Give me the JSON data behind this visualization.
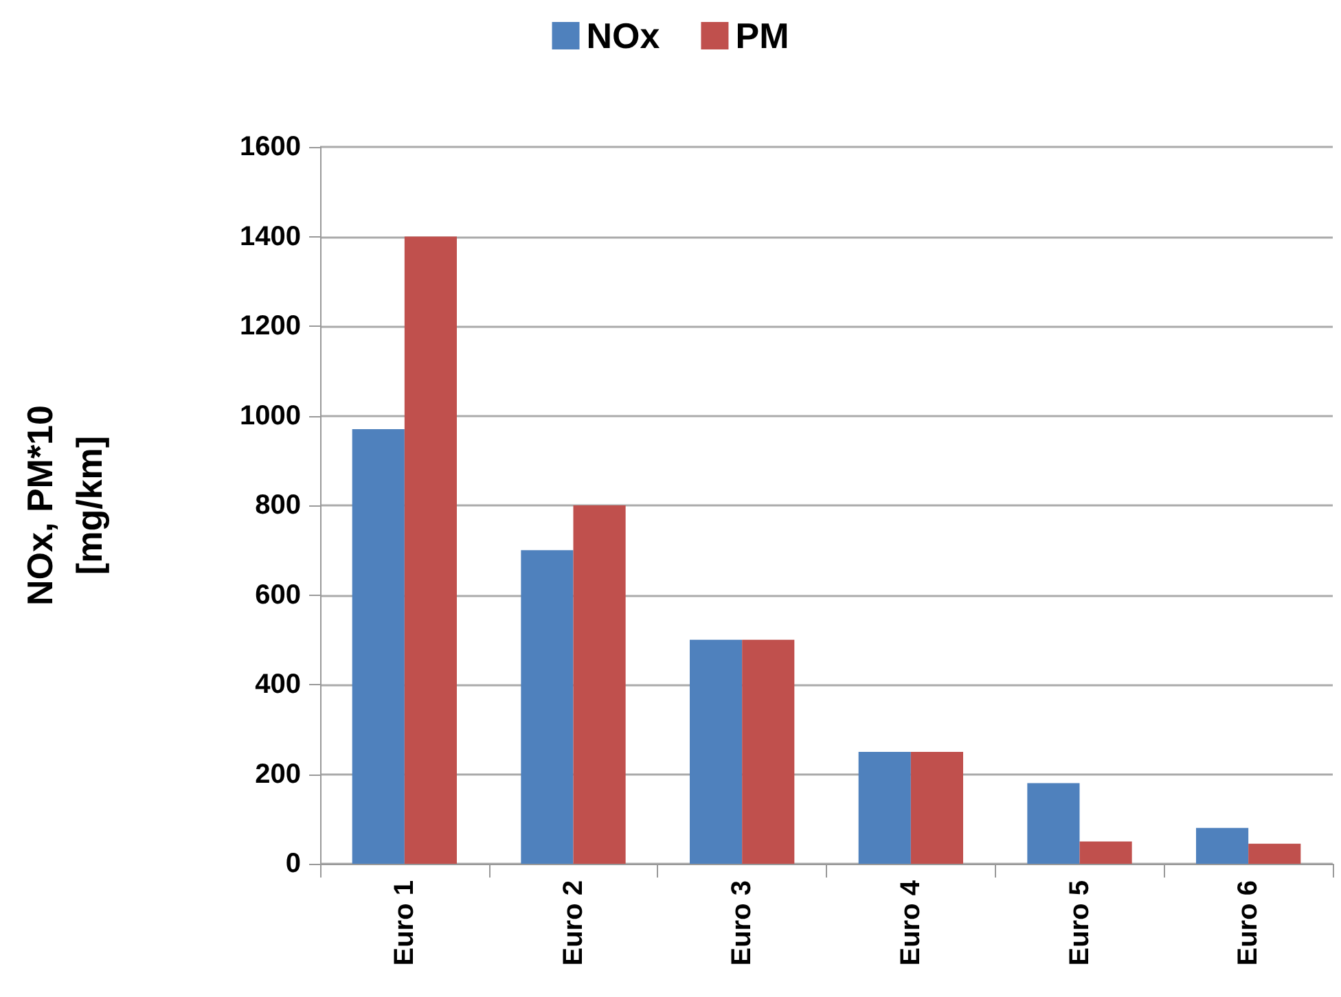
{
  "chart_data": {
    "type": "bar",
    "ylabel": "NOx, PM*10\n[mg/km]",
    "categories": [
      "Euro 1",
      "Euro 2",
      "Euro 3",
      "Euro 4",
      "Euro 5",
      "Euro 6"
    ],
    "series": [
      {
        "name": "NOx",
        "color": "#4f81bd",
        "values": [
          970,
          700,
          500,
          250,
          180,
          80
        ]
      },
      {
        "name": "PM",
        "color": "#c0504d",
        "values": [
          1400,
          800,
          500,
          250,
          50,
          45
        ]
      }
    ],
    "ylim": [
      0,
      1600
    ],
    "yticks": [
      0,
      200,
      400,
      600,
      800,
      1000,
      1200,
      1400,
      1600
    ],
    "grid": "y",
    "legend": "top"
  }
}
